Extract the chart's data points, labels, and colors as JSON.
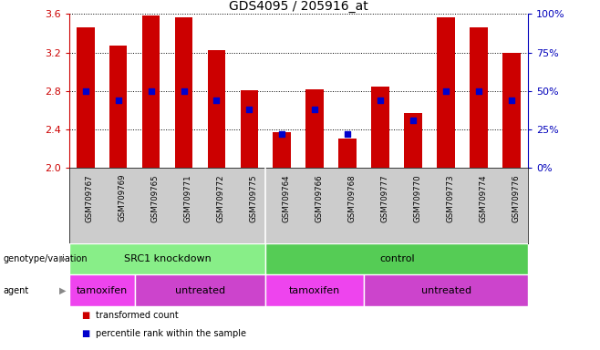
{
  "title": "GDS4095 / 205916_at",
  "samples": [
    "GSM709767",
    "GSM709769",
    "GSM709765",
    "GSM709771",
    "GSM709772",
    "GSM709775",
    "GSM709764",
    "GSM709766",
    "GSM709768",
    "GSM709777",
    "GSM709770",
    "GSM709773",
    "GSM709774",
    "GSM709776"
  ],
  "transformed_count": [
    3.46,
    3.27,
    3.58,
    3.57,
    3.22,
    2.81,
    2.37,
    2.82,
    2.31,
    2.85,
    2.57,
    3.57,
    3.46,
    3.2
  ],
  "percentile_rank": [
    50,
    44,
    50,
    50,
    44,
    38,
    22,
    38,
    22,
    44,
    31,
    50,
    50,
    44
  ],
  "bar_bottom": 2.0,
  "ylim_left": [
    2.0,
    3.6
  ],
  "ylim_right": [
    0,
    100
  ],
  "yticks_left": [
    2.0,
    2.4,
    2.8,
    3.2,
    3.6
  ],
  "yticks_right": [
    0,
    25,
    50,
    75,
    100
  ],
  "bar_color": "#cc0000",
  "dot_color": "#0000cc",
  "bg_color": "#ffffff",
  "groups": [
    {
      "label": "SRC1 knockdown",
      "start": 0,
      "end": 6,
      "color": "#88ee88"
    },
    {
      "label": "control",
      "start": 6,
      "end": 14,
      "color": "#55cc55"
    }
  ],
  "agents": [
    {
      "label": "tamoxifen",
      "start": 0,
      "end": 2,
      "color": "#ee44ee"
    },
    {
      "label": "untreated",
      "start": 2,
      "end": 6,
      "color": "#cc44cc"
    },
    {
      "label": "tamoxifen",
      "start": 6,
      "end": 9,
      "color": "#ee44ee"
    },
    {
      "label": "untreated",
      "start": 9,
      "end": 14,
      "color": "#cc44cc"
    }
  ],
  "legend_items": [
    {
      "label": "transformed count",
      "color": "#cc0000"
    },
    {
      "label": "percentile rank within the sample",
      "color": "#0000cc"
    }
  ],
  "xlabel_color": "#cc0000",
  "ylabel_right_color": "#0000bb",
  "names_bg_color": "#cccccc",
  "group_divider_at": 5.5
}
